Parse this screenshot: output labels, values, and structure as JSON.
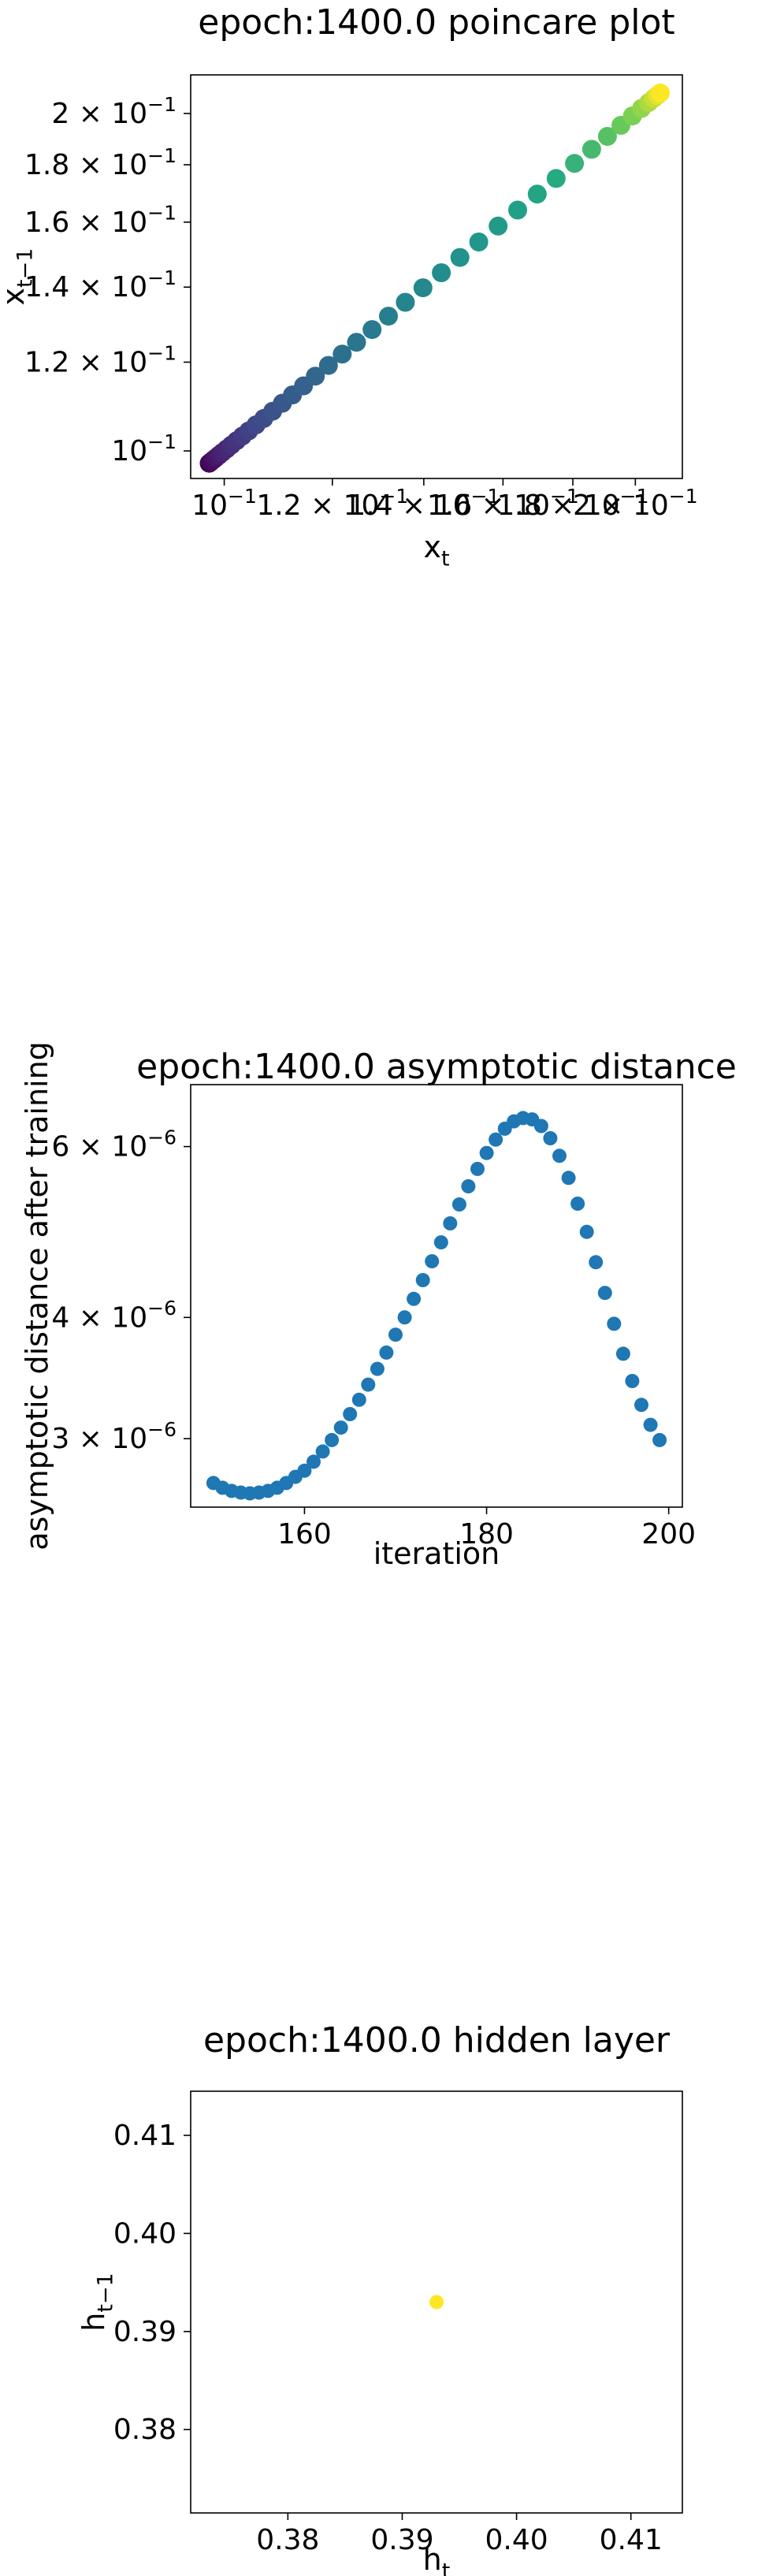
{
  "chart_data": [
    {
      "type": "scatter",
      "title": "epoch:1400.0 poincare plot",
      "xlabel": "x_t",
      "ylabel": "x_{t-1}",
      "xscale": "log",
      "yscale": "log",
      "xlim": [
        0.0945,
        0.2165
      ],
      "ylim": [
        0.0945,
        0.2165
      ],
      "colormap": "viridis",
      "x_tick_values": [
        0.1,
        0.12,
        0.14,
        0.16,
        0.18,
        0.2
      ],
      "x_tick_labels": [
        "10^{-1}",
        "1.2 × 10^{-1}",
        "1.4 × 10^{-1}",
        "1.6 × 10^{-1}",
        "1.8 × 10^{-1}",
        "2 × 10^{-1}"
      ],
      "y_tick_values": [
        0.1,
        0.12,
        0.14,
        0.16,
        0.18,
        0.2
      ],
      "y_tick_labels": [
        "10^{-1}",
        "1.2 × 10^{-1}",
        "1.4 × 10^{-1}",
        "1.6 × 10^{-1}",
        "1.8 × 10^{-1}",
        "2 × 10^{-1}"
      ],
      "x": [
        0.0975,
        0.0978,
        0.0982,
        0.0986,
        0.0991,
        0.0997,
        0.1004,
        0.1012,
        0.1021,
        0.1031,
        0.1042,
        0.1055,
        0.1069,
        0.1085,
        0.1103,
        0.1122,
        0.1143,
        0.1166,
        0.1192,
        0.122,
        0.125,
        0.1283,
        0.1319,
        0.1357,
        0.1398,
        0.1442,
        0.1488,
        0.1536,
        0.1587,
        0.164,
        0.1695,
        0.175,
        0.1805,
        0.1858,
        0.1908,
        0.1952,
        0.199,
        0.2021,
        0.2045,
        0.2063,
        0.2076,
        0.2086
      ],
      "y": [
        0.0975,
        0.0978,
        0.0982,
        0.0986,
        0.0991,
        0.0997,
        0.1004,
        0.1012,
        0.1021,
        0.1031,
        0.1042,
        0.1055,
        0.1069,
        0.1085,
        0.1103,
        0.1122,
        0.1143,
        0.1166,
        0.1192,
        0.122,
        0.125,
        0.1283,
        0.1319,
        0.1357,
        0.1398,
        0.1442,
        0.1488,
        0.1536,
        0.1587,
        0.164,
        0.1695,
        0.175,
        0.1805,
        0.1858,
        0.1908,
        0.1952,
        0.199,
        0.2021,
        0.2045,
        0.2063,
        0.2076,
        0.2086
      ]
    },
    {
      "type": "scatter",
      "title": "epoch:1400.0 asymptotic distance",
      "xlabel": "iteration",
      "ylabel": "asymptotic distance after training",
      "xscale": "linear",
      "yscale": "log",
      "xlim": [
        147.5,
        201.5
      ],
      "ylim": [
        2.55e-06,
        6.95e-06
      ],
      "color": "#1f77b4",
      "x_tick_values": [
        160,
        180,
        200
      ],
      "x_tick_labels": [
        "160",
        "180",
        "200"
      ],
      "y_tick_values": [
        3e-06,
        4e-06,
        6e-06
      ],
      "y_tick_labels": [
        "3 × 10^{-6}",
        "4 × 10^{-6}",
        "6 × 10^{-6}"
      ],
      "x": [
        150,
        151,
        152,
        153,
        154,
        155,
        156,
        157,
        158,
        159,
        160,
        161,
        162,
        163,
        164,
        165,
        166,
        167,
        168,
        169,
        170,
        171,
        172,
        173,
        174,
        175,
        176,
        177,
        178,
        179,
        180,
        181,
        182,
        183,
        184,
        185,
        186,
        187,
        188,
        189,
        190,
        191,
        192,
        193,
        194,
        195,
        196,
        197,
        198,
        199
      ],
      "y": [
        2.7e-06,
        2.67e-06,
        2.65e-06,
        2.64e-06,
        2.635e-06,
        2.64e-06,
        2.65e-06,
        2.67e-06,
        2.7e-06,
        2.74e-06,
        2.78e-06,
        2.84e-06,
        2.91e-06,
        2.99e-06,
        3.08e-06,
        3.18e-06,
        3.29e-06,
        3.41e-06,
        3.54e-06,
        3.68e-06,
        3.84e-06,
        4e-06,
        4.18e-06,
        4.37e-06,
        4.57e-06,
        4.78e-06,
        5e-06,
        5.23e-06,
        5.46e-06,
        5.69e-06,
        5.91e-06,
        6.1e-06,
        6.26e-06,
        6.37e-06,
        6.42e-06,
        6.4e-06,
        6.3e-06,
        6.12e-06,
        5.87e-06,
        5.57e-06,
        5.24e-06,
        4.9e-06,
        4.56e-06,
        4.24e-06,
        3.94e-06,
        3.67e-06,
        3.44e-06,
        3.25e-06,
        3.1e-06,
        2.99e-06
      ]
    },
    {
      "type": "scatter",
      "title": "epoch:1400.0 hidden layer",
      "xlabel": "h_t",
      "ylabel": "h_{t-1}",
      "xscale": "linear",
      "yscale": "linear",
      "xlim": [
        0.3715,
        0.4145
      ],
      "ylim": [
        0.3715,
        0.4145
      ],
      "color": "#fde725",
      "x_tick_values": [
        0.38,
        0.39,
        0.4,
        0.41
      ],
      "x_tick_labels": [
        "0.38",
        "0.39",
        "0.40",
        "0.41"
      ],
      "y_tick_values": [
        0.38,
        0.39,
        0.4,
        0.41
      ],
      "y_tick_labels": [
        "0.38",
        "0.39",
        "0.40",
        "0.41"
      ],
      "x": [
        0.393
      ],
      "y": [
        0.393
      ]
    }
  ]
}
